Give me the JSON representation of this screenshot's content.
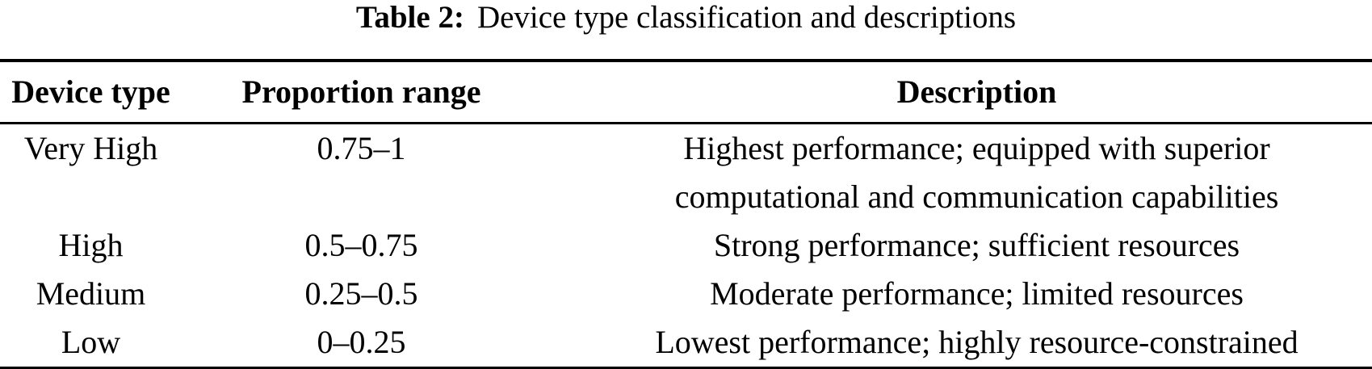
{
  "caption": {
    "label": "Table 2:",
    "title": "Device type classification and descriptions"
  },
  "table": {
    "headers": {
      "device_type": "Device type",
      "proportion_range": "Proportion range",
      "description": "Description"
    },
    "rows": [
      {
        "device_type": "Very High",
        "proportion_range": "0.75–1",
        "description_line1": "Highest performance; equipped with superior",
        "description_line2": "computational and communication capabilities"
      },
      {
        "device_type": "High",
        "proportion_range": "0.5–0.75",
        "description_line1": "Strong performance; sufficient resources"
      },
      {
        "device_type": "Medium",
        "proportion_range": "0.25–0.5",
        "description_line1": "Moderate performance; limited resources"
      },
      {
        "device_type": "Low",
        "proportion_range": "0–0.25",
        "description_line1": "Lowest performance; highly resource-constrained"
      }
    ]
  },
  "colors": {
    "text": "#000000",
    "background": "#ffffff",
    "rule": "#000000"
  }
}
